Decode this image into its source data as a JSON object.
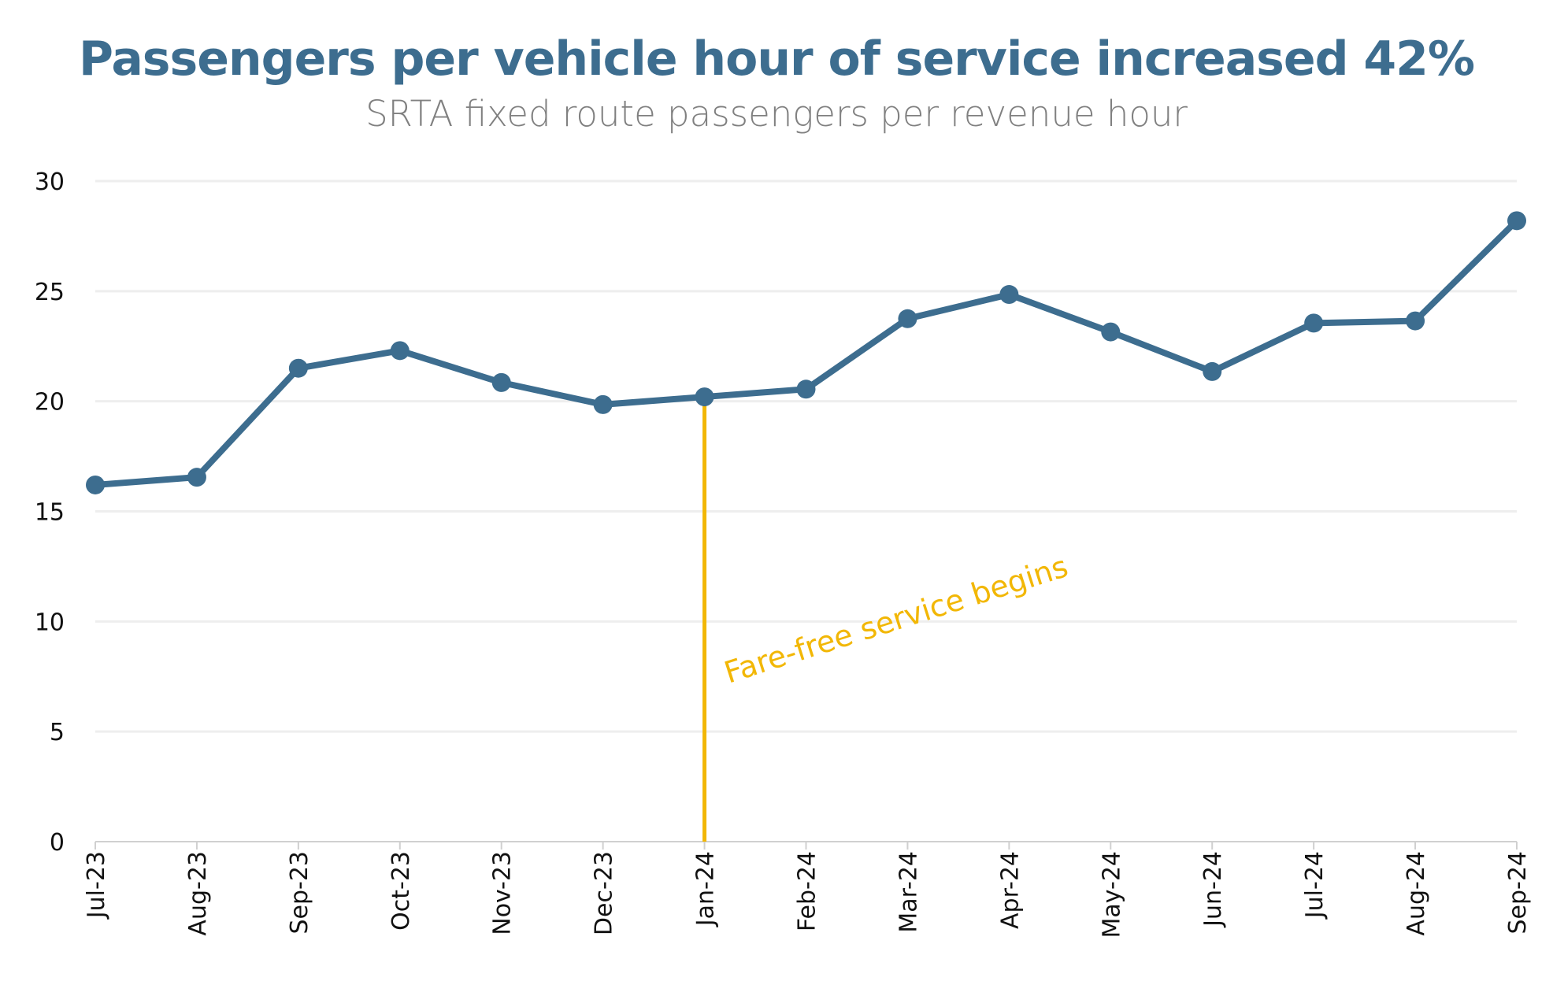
{
  "title": "Passengers per vehicle hour of service increased 42%",
  "subtitle": "SRTA fixed route passengers per revenue hour",
  "colors": {
    "title": "#3D6D8F",
    "line": "#3D6D8F",
    "annotation": "#F2B705",
    "grid": "#EEEEEE"
  },
  "chart_data": {
    "type": "line",
    "title": "Passengers per vehicle hour of service increased 42%",
    "subtitle": "SRTA fixed route passengers per revenue hour",
    "xlabel": "",
    "ylabel": "",
    "ylim": [
      0,
      30
    ],
    "yticks": [
      "0",
      "5",
      "10",
      "15",
      "20",
      "25",
      "30"
    ],
    "grid": true,
    "categories": [
      "Jul-23",
      "Aug-23",
      "Sep-23",
      "Oct-23",
      "Nov-23",
      "Dec-23",
      "Jan-24",
      "Feb-24",
      "Mar-24",
      "Apr-24",
      "May-24",
      "Jun-24",
      "Jul-24",
      "Aug-24",
      "Sep-24"
    ],
    "values": [
      16.2,
      16.55,
      21.5,
      22.3,
      20.85,
      19.85,
      20.2,
      20.55,
      23.75,
      24.85,
      23.15,
      21.35,
      23.55,
      23.65,
      28.2
    ],
    "annotation": {
      "category": "Jan-24",
      "text": "Fare-free service begins"
    }
  }
}
